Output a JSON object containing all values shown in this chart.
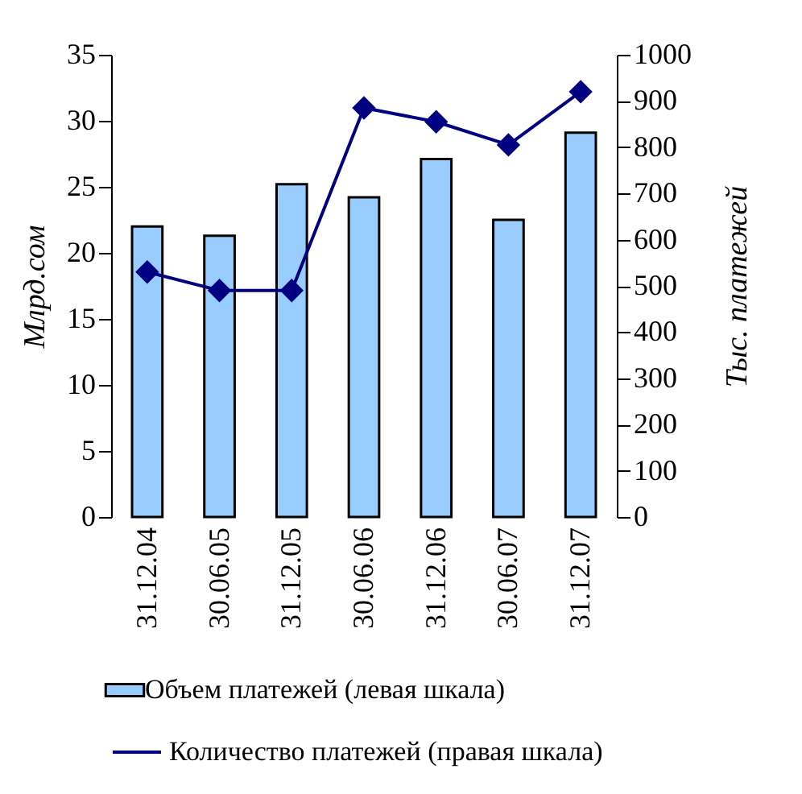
{
  "chart_data": {
    "type": "bar",
    "categories": [
      "31.12.04",
      "30.06.05",
      "31.12.05",
      "30.06.06",
      "31.12.06",
      "30.06.07",
      "31.12.07"
    ],
    "ylabel": "Млрд.сом",
    "y2label": "Тыс. платежей",
    "ylim": [
      0,
      35
    ],
    "yticks": [
      0,
      5,
      10,
      15,
      20,
      25,
      30,
      35
    ],
    "y2lim": [
      0,
      1000
    ],
    "y2ticks": [
      0,
      100,
      200,
      300,
      400,
      500,
      600,
      700,
      800,
      900,
      1000
    ],
    "series": [
      {
        "name": "Объем платежей (левая шкала)",
        "color": "#99ccff",
        "values": [
          22,
          21.3,
          25.2,
          24.2,
          27.1,
          22.5,
          29.1
        ]
      },
      {
        "name": "Количество платежей (правая шкала)",
        "type": "line",
        "axis": "y2",
        "color": "#000080",
        "values": [
          530,
          490,
          490,
          885,
          855,
          805,
          920
        ]
      }
    ],
    "marker": "diamond",
    "legend": "bottom",
    "grid": false
  }
}
